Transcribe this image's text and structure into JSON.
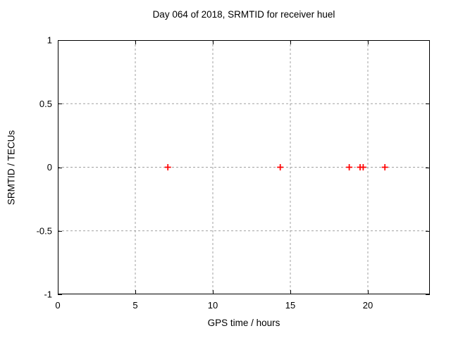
{
  "title": "Day 064 of 2018, SRMTID for receiver huel",
  "colors": {
    "background": "#ffffff",
    "border": "#000000",
    "grid": "#a0a0a0",
    "text": "#000000",
    "marker": "#ff0000"
  },
  "chart_data": {
    "type": "scatter",
    "title": "Day 064 of 2018, SRMTID for receiver huel",
    "xlabel": "GPS time / hours",
    "ylabel": "SRMTID / TECUs",
    "xlim": [
      0,
      24
    ],
    "ylim": [
      -1,
      1
    ],
    "x_ticks": [
      0,
      5,
      10,
      15,
      20
    ],
    "x_tick_labels": [
      "0",
      "5",
      "10",
      "15",
      "20"
    ],
    "y_ticks": [
      -1,
      -0.5,
      0,
      0.5,
      1
    ],
    "y_tick_labels": [
      "-1",
      "-0.5",
      "0",
      "0.5",
      "1"
    ],
    "grid": true,
    "grid_style": "dashed",
    "legend": "none",
    "series": [
      {
        "name": "SRMTID",
        "marker": "plus",
        "color": "#ff0000",
        "points": [
          [
            7.1,
            0
          ],
          [
            14.35,
            0
          ],
          [
            18.8,
            0
          ],
          [
            19.5,
            0
          ],
          [
            19.7,
            0
          ],
          [
            21.1,
            0
          ]
        ]
      }
    ]
  }
}
